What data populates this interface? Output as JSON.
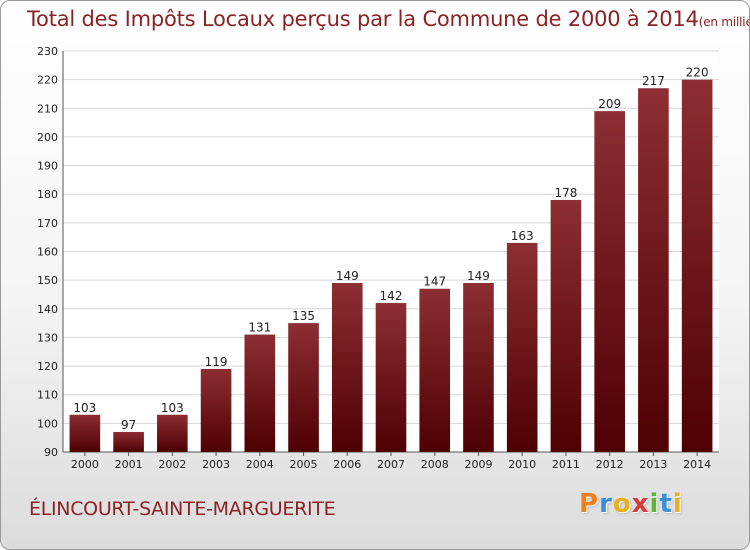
{
  "chart_data": {
    "type": "bar",
    "title": "Total des Impôts Locaux perçus par la Commune de 2000 à 2014",
    "title_unit": "(en milliers d'€)",
    "categories": [
      "2000",
      "2001",
      "2002",
      "2003",
      "2004",
      "2005",
      "2006",
      "2007",
      "2008",
      "2009",
      "2010",
      "2011",
      "2012",
      "2013",
      "2014"
    ],
    "values": [
      103,
      97,
      103,
      119,
      131,
      135,
      149,
      142,
      147,
      149,
      163,
      178,
      209,
      217,
      220
    ],
    "ylim": [
      90,
      230
    ],
    "yticks": [
      90,
      100,
      110,
      120,
      130,
      140,
      150,
      160,
      170,
      180,
      190,
      200,
      210,
      220,
      230
    ],
    "xlabel": "",
    "ylabel": "",
    "grid": "horizontal",
    "bar_color": "#6e0c10"
  },
  "commune": "ÉLINCOURT-SAINTE-MARGUERITE",
  "logo": {
    "letters": [
      "P",
      "r",
      "o",
      "x",
      "i",
      "t",
      "i"
    ],
    "colors": [
      "#f07f1a",
      "#3a8fd6",
      "#e8b11c",
      "#d83a3a",
      "#5cb338",
      "#3a8fd6",
      "#e8b11c"
    ]
  }
}
